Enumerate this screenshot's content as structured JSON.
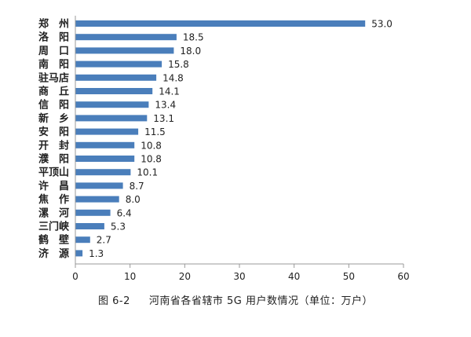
{
  "chart_data": {
    "type": "bar",
    "orientation": "horizontal",
    "categories": [
      "郑　州",
      "洛　阳",
      "周　口",
      "南　阳",
      "驻马店",
      "商　丘",
      "信　阳",
      "新　乡",
      "安　阳",
      "开　封",
      "濮　阳",
      "平顶山",
      "许　昌",
      "焦　作",
      "漯　河",
      "三门峡",
      "鹤　壁",
      "济　源"
    ],
    "values": [
      53.0,
      18.5,
      18.0,
      15.8,
      14.8,
      14.1,
      13.4,
      13.1,
      11.5,
      10.8,
      10.8,
      10.1,
      8.7,
      8.0,
      6.4,
      5.3,
      2.7,
      1.3
    ],
    "value_labels": [
      "53.0",
      "18.5",
      "18.0",
      "15.8",
      "14.8",
      "14.1",
      "13.4",
      "13.1",
      "11.5",
      "10.8",
      "10.8",
      "10.1",
      "8.7",
      "8.0",
      "6.4",
      "5.3",
      "2.7",
      "1.3"
    ],
    "xlim": [
      0,
      60
    ],
    "xticks": [
      0,
      10,
      20,
      30,
      40,
      50,
      60
    ],
    "xtick_labels": [
      "0",
      "10",
      "20",
      "30",
      "40",
      "50",
      "60"
    ],
    "grid": false,
    "legend": "none",
    "bar_color": "#4a7ebb",
    "axis_color": "#999999"
  },
  "caption": {
    "figure_number": "图 6-2",
    "text": "河南省各省辖市 5G 用户数情况（单位：万户）"
  }
}
